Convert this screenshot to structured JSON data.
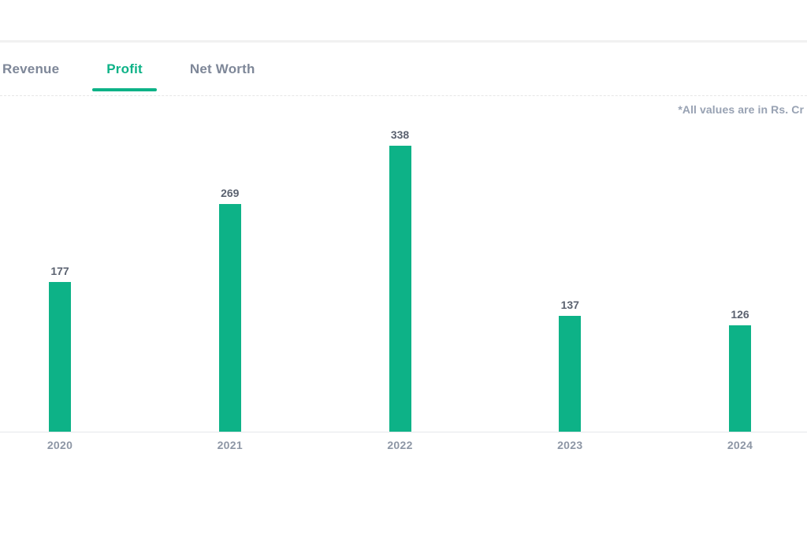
{
  "note": {
    "text": "*All values are in Rs. Cr"
  },
  "tabs": [
    {
      "label": "Revenue",
      "active": false
    },
    {
      "label": "Profit",
      "active": true
    },
    {
      "label": "Net Worth",
      "active": false
    }
  ],
  "colors": {
    "accent_green": "#0db287",
    "tab_inactive_text": "#7e8798",
    "value_label_text": "#5b6270",
    "axis_label_text": "#8d96a5",
    "note_text": "#98a2b3",
    "axis_line": "#e5e7ea",
    "top_divider": "#f1f1f1",
    "background": "#ffffff"
  },
  "chart_data": {
    "type": "bar",
    "series_name": "Profit",
    "categories": [
      "2020",
      "2021",
      "2022",
      "2023",
      "2024"
    ],
    "values": [
      177,
      269,
      338,
      137,
      126
    ],
    "title": "",
    "xlabel": "",
    "ylabel": "",
    "unit": "Rs. Cr",
    "ylim": [
      0,
      400
    ],
    "grid": false,
    "legend": false,
    "bar_color": "#0db287",
    "value_labels_shown": true
  }
}
